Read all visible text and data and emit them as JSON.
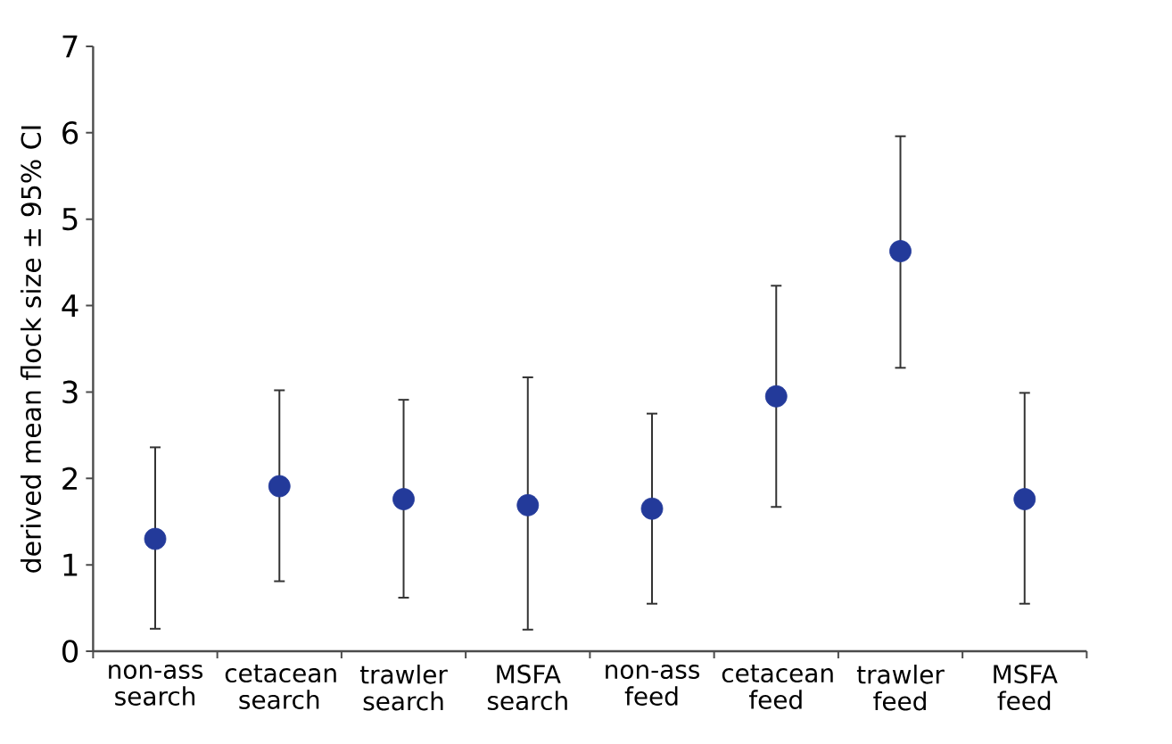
{
  "chart_data": {
    "type": "scatter",
    "ylabel": "derived mean flock size ± 95% CI",
    "categories": [
      "non-ass search",
      "cetacean search",
      "trawler search",
      "MSFA search",
      "non-ass feed",
      "cetacean feed",
      "trawler feed",
      "MSFA feed"
    ],
    "values": [
      1.3,
      1.91,
      1.76,
      1.69,
      1.65,
      2.95,
      4.63,
      1.76
    ],
    "errors": [
      [
        0.26,
        2.36
      ],
      [
        0.81,
        3.02
      ],
      [
        0.62,
        2.91
      ],
      [
        0.25,
        3.17
      ],
      [
        0.55,
        2.75
      ],
      [
        1.67,
        4.23
      ],
      [
        3.28,
        5.96
      ],
      [
        0.55,
        2.99
      ]
    ],
    "color": "#233a9a",
    "ylim": [
      0,
      7
    ],
    "yticks": [
      0,
      1,
      2,
      3,
      4,
      5,
      6,
      7
    ],
    "grid": false
  }
}
